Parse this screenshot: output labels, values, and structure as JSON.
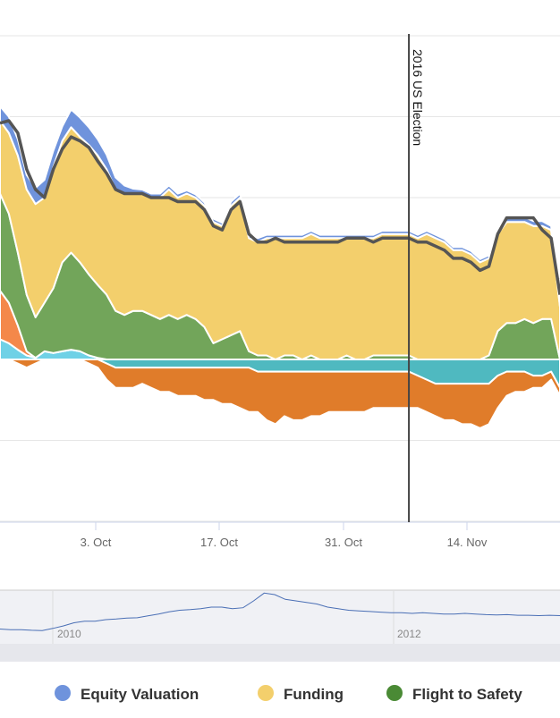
{
  "chart_data": {
    "type": "area",
    "stacked": true,
    "x_ticks": [
      "3. Oct",
      "17. Oct",
      "31. Oct",
      "14. Nov"
    ],
    "y_range": [
      -2,
      4
    ],
    "grid": true,
    "plot_line": {
      "label": "2016 US Election",
      "x_index": 46
    },
    "n_points": 64,
    "series": [
      {
        "name": "Equity Valuation",
        "color": "#6f93dc",
        "legend": true,
        "values": [
          0.18,
          0.2,
          0.2,
          0.18,
          0.2,
          0.22,
          0.2,
          0.18,
          0.22,
          0.24,
          0.22,
          0.2,
          0.18,
          0.15,
          0.1,
          0.06,
          0.05,
          0.05,
          0.05,
          0.05,
          0.05,
          0.04,
          0.04,
          0.04,
          0.04,
          0.04,
          0.05,
          0.05,
          0.05,
          0.05,
          0.04,
          0.04,
          0.04,
          0.04,
          0.04,
          0.04,
          0.04,
          0.04,
          0.04,
          0.04,
          0.04,
          0.04,
          0.04,
          0.04,
          0.04,
          0.04,
          0.04,
          0.04,
          0.04,
          0.04,
          0.04,
          0.04,
          0.04,
          0.04,
          0.04,
          0.04,
          0.04,
          0.06,
          0.06,
          0.06,
          0.06,
          0.06,
          0.05,
          0.05
        ]
      },
      {
        "name": "Funding",
        "color": "#f3cf6c",
        "legend": true,
        "values": [
          0.9,
          1.0,
          1.2,
          1.3,
          1.4,
          1.3,
          1.5,
          1.5,
          1.55,
          1.55,
          1.6,
          1.6,
          1.55,
          1.5,
          1.5,
          1.45,
          1.45,
          1.45,
          1.5,
          1.55,
          1.5,
          1.5,
          1.5,
          1.5,
          1.5,
          1.4,
          1.6,
          1.65,
          1.4,
          1.4,
          1.45,
          1.5,
          1.45,
          1.45,
          1.5,
          1.5,
          1.5,
          1.5,
          1.5,
          1.45,
          1.5,
          1.5,
          1.45,
          1.5,
          1.5,
          1.5,
          1.5,
          1.5,
          1.55,
          1.5,
          1.45,
          1.35,
          1.35,
          1.3,
          1.2,
          1.2,
          1.2,
          1.25,
          1.25,
          1.2,
          1.2,
          1.15,
          1.1,
          0.65
        ]
      },
      {
        "name": "Flight to Safety",
        "color": "#72a55a",
        "legend": true,
        "values": [
          1.2,
          1.1,
          0.9,
          0.7,
          0.5,
          0.6,
          0.8,
          1.1,
          1.2,
          1.1,
          1.0,
          0.9,
          0.8,
          0.6,
          0.55,
          0.6,
          0.6,
          0.55,
          0.5,
          0.55,
          0.5,
          0.55,
          0.5,
          0.4,
          0.2,
          0.25,
          0.3,
          0.35,
          0.1,
          0.05,
          0.05,
          0.0,
          0.05,
          0.05,
          0.0,
          0.05,
          0.0,
          0.0,
          0.0,
          0.05,
          0.0,
          0.0,
          0.05,
          0.05,
          0.05,
          0.05,
          0.05,
          0.0,
          0.0,
          0.0,
          0.0,
          0.0,
          0.0,
          0.0,
          0.0,
          0.05,
          0.35,
          0.45,
          0.45,
          0.5,
          0.45,
          0.5,
          0.5,
          0.0
        ]
      },
      {
        "name": "Orange (pos)",
        "color": "#f4884a",
        "legend": false,
        "values": [
          0.6,
          0.5,
          0.3,
          0.05,
          0,
          0,
          0,
          0,
          0,
          0,
          0,
          0,
          0,
          0,
          0,
          0,
          0,
          0,
          0,
          0,
          0,
          0,
          0,
          0,
          0,
          0,
          0,
          0,
          0,
          0,
          0,
          0,
          0,
          0,
          0,
          0,
          0,
          0,
          0,
          0,
          0,
          0,
          0,
          0,
          0,
          0,
          0,
          0,
          0,
          0,
          0,
          0,
          0,
          0,
          0,
          0,
          0,
          0,
          0,
          0,
          0,
          0,
          0,
          0
        ]
      },
      {
        "name": "Teal (pos)",
        "color": "#6fd1e6",
        "legend": false,
        "values": [
          0.25,
          0.2,
          0.12,
          0.05,
          0.02,
          0.1,
          0.08,
          0.1,
          0.12,
          0.1,
          0.05,
          0.02,
          0,
          0,
          0,
          0,
          0,
          0,
          0,
          0,
          0,
          0,
          0,
          0,
          0,
          0,
          0,
          0,
          0,
          0,
          0,
          0,
          0,
          0,
          0,
          0,
          0,
          0,
          0,
          0,
          0,
          0,
          0,
          0,
          0,
          0,
          0,
          0,
          0,
          0,
          0,
          0,
          0,
          0,
          0,
          0,
          0,
          0,
          0,
          0,
          0,
          0,
          0,
          0
        ]
      },
      {
        "name": "Teal (neg)",
        "color": "#4fb9c0",
        "legend": false,
        "values": [
          0,
          0,
          0,
          0,
          0,
          0,
          0,
          0,
          0,
          0,
          0,
          0,
          -0.05,
          -0.1,
          -0.1,
          -0.1,
          -0.1,
          -0.1,
          -0.1,
          -0.1,
          -0.1,
          -0.1,
          -0.1,
          -0.1,
          -0.1,
          -0.1,
          -0.1,
          -0.1,
          -0.1,
          -0.15,
          -0.15,
          -0.15,
          -0.15,
          -0.15,
          -0.15,
          -0.15,
          -0.15,
          -0.15,
          -0.15,
          -0.15,
          -0.15,
          -0.15,
          -0.15,
          -0.15,
          -0.15,
          -0.15,
          -0.15,
          -0.2,
          -0.25,
          -0.3,
          -0.3,
          -0.3,
          -0.3,
          -0.3,
          -0.3,
          -0.3,
          -0.2,
          -0.15,
          -0.15,
          -0.15,
          -0.2,
          -0.2,
          -0.15,
          -0.35
        ]
      },
      {
        "name": "Orange (neg)",
        "color": "#e07c2a",
        "legend": false,
        "values": [
          0,
          0,
          -0.05,
          -0.1,
          -0.05,
          0,
          0,
          0,
          0,
          0,
          -0.05,
          -0.1,
          -0.2,
          -0.25,
          -0.25,
          -0.25,
          -0.2,
          -0.25,
          -0.3,
          -0.3,
          -0.35,
          -0.35,
          -0.35,
          -0.4,
          -0.4,
          -0.45,
          -0.45,
          -0.5,
          -0.55,
          -0.5,
          -0.6,
          -0.65,
          -0.55,
          -0.6,
          -0.6,
          -0.55,
          -0.55,
          -0.5,
          -0.5,
          -0.5,
          -0.5,
          -0.5,
          -0.45,
          -0.45,
          -0.45,
          -0.45,
          -0.45,
          -0.4,
          -0.4,
          -0.4,
          -0.45,
          -0.45,
          -0.5,
          -0.5,
          -0.55,
          -0.5,
          -0.4,
          -0.3,
          -0.25,
          -0.25,
          -0.15,
          -0.15,
          -0.1,
          -0.1
        ]
      }
    ],
    "total": [
      2.92,
      2.95,
      2.8,
      2.35,
      2.1,
      2.0,
      2.35,
      2.6,
      2.75,
      2.7,
      2.62,
      2.45,
      2.3,
      2.1,
      2.05,
      2.05,
      2.05,
      2.0,
      2.0,
      2.0,
      1.95,
      1.95,
      1.95,
      1.85,
      1.65,
      1.6,
      1.85,
      1.95,
      1.55,
      1.45,
      1.45,
      1.5,
      1.45,
      1.45,
      1.45,
      1.45,
      1.45,
      1.45,
      1.45,
      1.5,
      1.5,
      1.5,
      1.45,
      1.5,
      1.5,
      1.5,
      1.5,
      1.45,
      1.45,
      1.4,
      1.35,
      1.25,
      1.25,
      1.2,
      1.1,
      1.15,
      1.55,
      1.75,
      1.75,
      1.75,
      1.75,
      1.6,
      1.5,
      0.8
    ],
    "navigator": {
      "labels": [
        "2010",
        "2012"
      ],
      "values": [
        0.3,
        0.28,
        0.28,
        0.26,
        0.25,
        0.32,
        0.4,
        0.5,
        0.55,
        0.55,
        0.6,
        0.62,
        0.65,
        0.66,
        0.72,
        0.78,
        0.85,
        0.9,
        0.92,
        0.95,
        1.0,
        1.0,
        0.95,
        0.98,
        1.2,
        1.45,
        1.4,
        1.25,
        1.2,
        1.15,
        1.1,
        1.0,
        0.95,
        0.9,
        0.88,
        0.86,
        0.84,
        0.82,
        0.82,
        0.8,
        0.82,
        0.8,
        0.78,
        0.78,
        0.8,
        0.78,
        0.76,
        0.75,
        0.76,
        0.74,
        0.74,
        0.73,
        0.74,
        0.73
      ]
    }
  }
}
